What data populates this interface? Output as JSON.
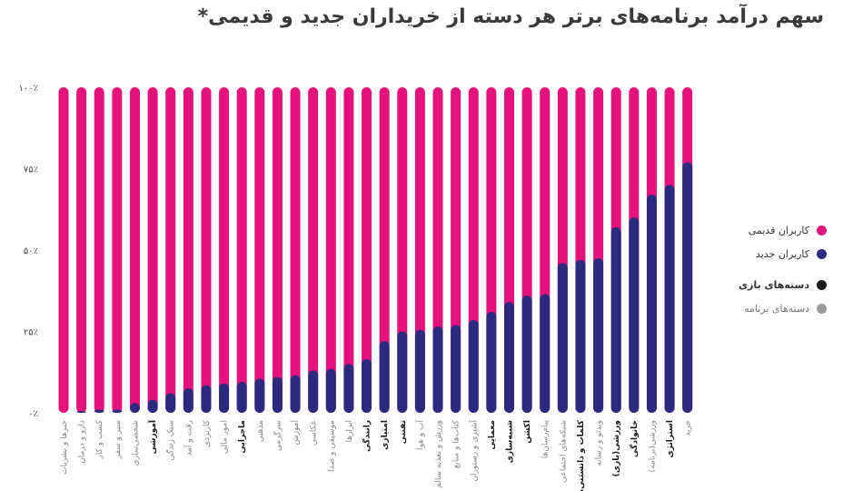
{
  "title": "سهم درآمد برنامه‌های برتر هر دسته از خریداران جدید و قدیمی*",
  "colors": {
    "old_users": "#e5127d",
    "new_users": "#2b2a7e",
    "game": "#1a1a1a",
    "app": "#9a9a9a"
  },
  "legend": [
    {
      "label": "کاربران قدیمی",
      "color": "#e5127d",
      "style": "normal"
    },
    {
      "label": "کاربران جدید",
      "color": "#2b2a7e",
      "style": "normal"
    },
    {
      "label": "دسته‌های بازی",
      "color": "#1a1a1a",
      "style": "bold"
    },
    {
      "label": "دسته‌های برنامه",
      "color": "#9a9a9a",
      "style": "muted"
    }
  ],
  "chart_data": {
    "type": "bar",
    "stacked": true,
    "percent": true,
    "ylim": [
      0,
      100
    ],
    "yticks": [
      "۰٪",
      "۲۵٪",
      "۵۰٪",
      "۷۵٪",
      "۱۰۰٪"
    ],
    "categories": [
      "خبرها و نشریات",
      "دارو و درمان",
      "کسب و کار",
      "سیر و سفر",
      "شخصی‌سازی",
      "آموزشی",
      "سبک زندگی",
      "رفت و آمد",
      "کاربردی",
      "امور مالی",
      "ماجرایی",
      "مذهبی",
      "سرگرمی",
      "آموزش",
      "عکاسی",
      "موسیقی و صدا",
      "ابزارها",
      "رانندگی",
      "امتیازی",
      "تفننی",
      "آب و هوا",
      "ورزش و تغذیه سالم",
      "کتاب‌ها و منابع",
      "آشپزی و رستوران",
      "معمایی",
      "شبیه‌سازی",
      "اکشن",
      "پیام‌رسان‌ها",
      "شبکه‌های اجتماعی",
      "کلمات و دانستنی‌ها",
      "ویدئو و رسانه",
      "ورزشی(بازی)",
      "خانوادگی",
      "ورزشی(برنامه)",
      "استراتژی",
      "خرید"
    ],
    "category_kind": [
      "app",
      "app",
      "app",
      "app",
      "app",
      "game",
      "app",
      "app",
      "app",
      "app",
      "game",
      "app",
      "app",
      "app",
      "app",
      "app",
      "app",
      "game",
      "game",
      "game",
      "app",
      "app",
      "app",
      "app",
      "game",
      "game",
      "game",
      "app",
      "app",
      "game",
      "app",
      "game",
      "game",
      "app",
      "game",
      "app"
    ],
    "series": [
      {
        "name": "کاربران جدید",
        "values": [
          0,
          0.5,
          1,
          1,
          3,
          4,
          6,
          7.5,
          8.5,
          9,
          9.5,
          10.5,
          11,
          11.5,
          13,
          13.5,
          15,
          16.5,
          22,
          25,
          25.5,
          26.5,
          27,
          28.5,
          31,
          34,
          36,
          36.5,
          46,
          47,
          47.5,
          57,
          60,
          67,
          70,
          77
        ]
      },
      {
        "name": "کاربران قدیمی",
        "values": [
          100,
          99.5,
          99,
          99,
          97,
          96,
          94,
          92.5,
          91.5,
          91,
          90.5,
          89.5,
          89,
          88.5,
          87,
          86.5,
          85,
          83.5,
          78,
          75,
          74.5,
          73.5,
          73,
          71.5,
          69,
          66,
          64,
          63.5,
          54,
          53,
          52.5,
          43,
          40,
          33,
          30,
          23
        ]
      }
    ]
  }
}
